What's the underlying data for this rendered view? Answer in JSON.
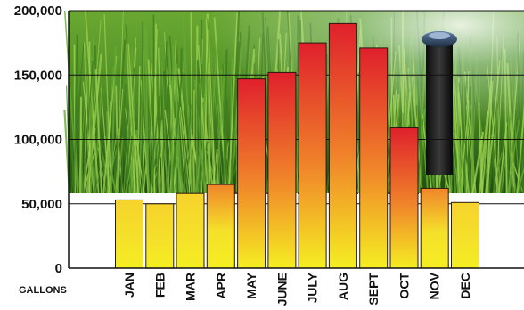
{
  "chart_data": {
    "type": "bar",
    "categories": [
      "JAN",
      "FEB",
      "MAR",
      "APR",
      "MAY",
      "JUNE",
      "JULY",
      "AUG",
      "SEPT",
      "OCT",
      "NOV",
      "DEC"
    ],
    "values": [
      53000,
      50000,
      58000,
      65000,
      147000,
      152000,
      175000,
      190000,
      171000,
      109000,
      62000,
      51000
    ],
    "y_ticks": [
      "200,000",
      "150,000",
      "100,000",
      "50,000",
      "0"
    ],
    "ylabel": "GALLONS",
    "ylim": [
      0,
      200000
    ],
    "reference_line": 58000,
    "grid": true,
    "colors": {
      "bar_top_high": "#e0202c",
      "bar_mid": "#f0852a",
      "bar_bottom": "#f5ee22",
      "bar_outline": "#2a1a10",
      "grass_light": "#7fbf3a",
      "grass_dark": "#1f4d12"
    },
    "background_image": "lawn-sprinkler-photo"
  }
}
